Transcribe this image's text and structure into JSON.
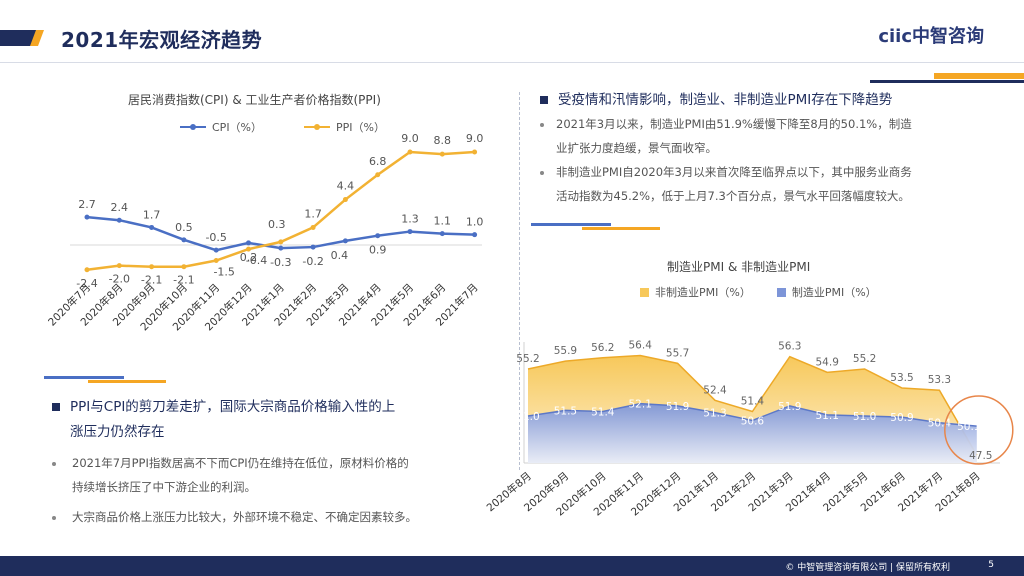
{
  "header": {
    "title": "2021年宏观经济趋势",
    "logo": "ciic中智咨询"
  },
  "left_chart_title": "居民消费指数(CPI) & 工业生产者价格指数(PPI)",
  "right_chart_title": "制造业PMI & 非制造业PMI",
  "section_right": {
    "heading": "受疫情和汛情影响，制造业、非制造业PMI存在下降趋势",
    "bullets": [
      "2021年3月以来，制造业PMI由51.9%缓慢下降至8月的50.1%，制造",
      "业扩张力度趋缓，景气面收窄。",
      "非制造业PMI自2020年3月以来首次降至临界点以下，其中服务业商务",
      "活动指数为45.2%，低于上月7.3个百分点，景气水平回落幅度较大。"
    ]
  },
  "section_left": {
    "heading_line1": "PPI与CPI的剪刀差走扩，国际大宗商品价格输入性的上",
    "heading_line2": "涨压力仍然存在",
    "bullets": [
      "2021年7月PPI指数居高不下而CPI仍在维持在低位，原材料价格的",
      "持续增长挤压了中下游企业的利润。",
      "大宗商品价格上涨压力比较大，外部环境不稳定、不确定因素较多。"
    ]
  },
  "footer": {
    "copyright": "© 中智管理咨询有限公司 | 保留所有权利",
    "page": "5"
  },
  "colors": {
    "navy": "#1f2d5c",
    "gold": "#f5a623",
    "cpi": "#4a6fc4",
    "ppi": "#f2b233",
    "pmi_fill": "#f7c85a",
    "pmi_blue": "#7d95d8",
    "circle": "#e8864a"
  },
  "chart_data": [
    {
      "type": "line",
      "title": "居民消费指数(CPI) & 工业生产者价格指数(PPI)",
      "categories": [
        "2020年7月",
        "2020年8月",
        "2020年9月",
        "2020年10月",
        "2020年11月",
        "2020年12月",
        "2021年1月",
        "2021年2月",
        "2021年3月",
        "2021年4月",
        "2021年5月",
        "2021年6月",
        "2021年7月"
      ],
      "series": [
        {
          "name": "CPI（%）",
          "values": [
            2.7,
            2.4,
            1.7,
            0.5,
            -0.5,
            0.2,
            -0.3,
            -0.2,
            0.4,
            0.9,
            1.3,
            1.1,
            1.0
          ]
        },
        {
          "name": "PPI（%）",
          "values": [
            -2.4,
            -2.0,
            -2.1,
            -2.1,
            -1.5,
            -0.4,
            0.3,
            1.7,
            4.4,
            6.8,
            9.0,
            8.8,
            9.0
          ]
        }
      ],
      "ylim": [
        -3,
        10
      ],
      "legend": "top"
    },
    {
      "type": "area",
      "title": "制造业PMI & 非制造业PMI",
      "categories": [
        "2020年8月",
        "2020年9月",
        "2020年10月",
        "2020年11月",
        "2020年12月",
        "2021年1月",
        "2021年2月",
        "2021年3月",
        "2021年4月",
        "2021年5月",
        "2021年6月",
        "2021年7月",
        "2021年8月"
      ],
      "series": [
        {
          "name": "非制造业PMI（%）",
          "values": [
            55.2,
            55.9,
            56.2,
            56.4,
            55.7,
            52.4,
            51.4,
            56.3,
            54.9,
            55.2,
            53.5,
            53.3,
            47.5
          ]
        },
        {
          "name": "制造业PMI（%）",
          "values": [
            51.0,
            51.5,
            51.4,
            52.1,
            51.9,
            51.3,
            50.6,
            51.9,
            51.1,
            51.0,
            50.9,
            50.4,
            50.1
          ]
        }
      ],
      "ylim": [
        42,
        58
      ],
      "legend": "top"
    }
  ]
}
